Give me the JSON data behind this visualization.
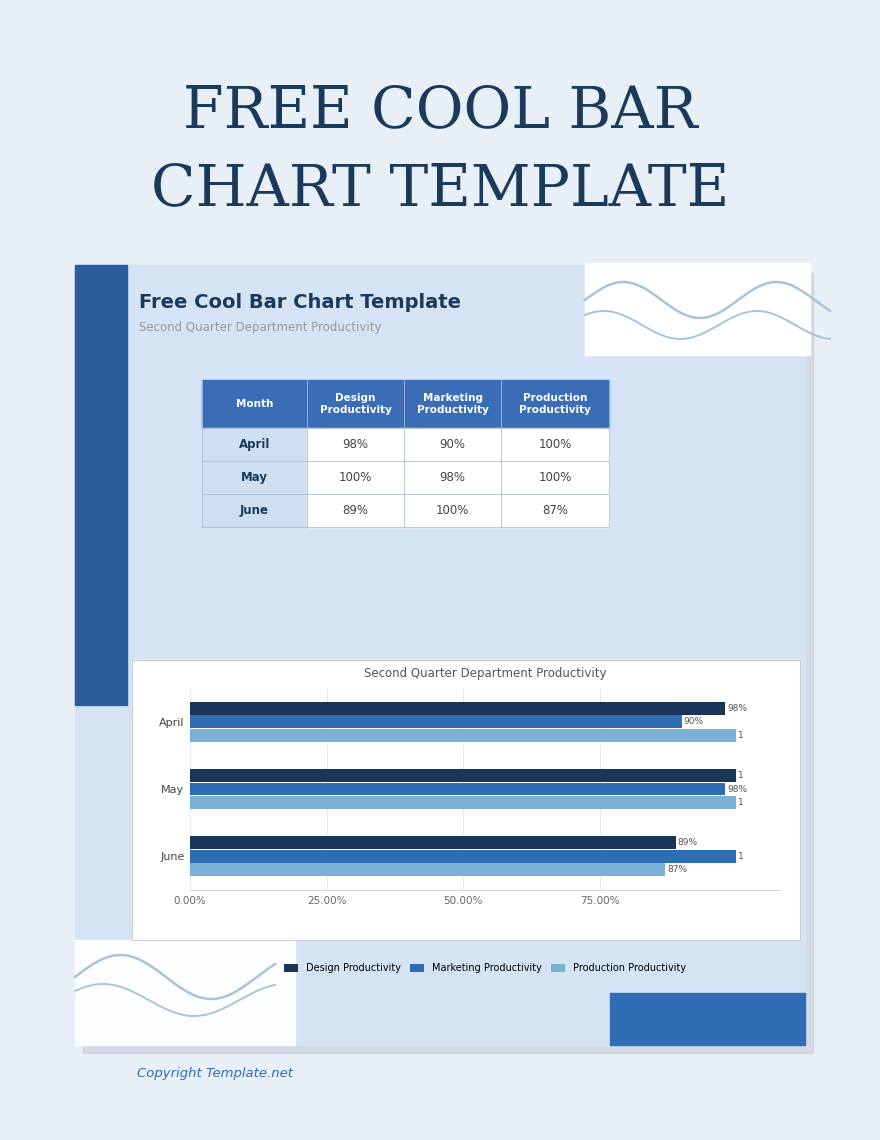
{
  "main_title": "FREE COOL BAR\nCHART TEMPLATE",
  "main_title_color": "#1a3a5c",
  "main_title_fontsize": 42,
  "card_title": "Free Cool Bar Chart Template",
  "card_subtitle": "Second Quarter Department Productivity",
  "card_title_color": "#1a3a5c",
  "card_subtitle_color": "#999999",
  "bg_color": "#e8eff7",
  "inner_card_bg": "#d4e4f4",
  "sidebar_color": "#2b5c9e",
  "table_header_bg": "#3a6db5",
  "table_header_text": "#ffffff",
  "table_row_month_bg": "#cddff0",
  "table_months": [
    "April",
    "May",
    "June"
  ],
  "table_headers": [
    "Month",
    "Design\nProductivity",
    "Marketing\nProductivity",
    "Production\nProductivity"
  ],
  "table_data": {
    "April": [
      98,
      90,
      100
    ],
    "May": [
      100,
      98,
      100
    ],
    "June": [
      89,
      100,
      87
    ]
  },
  "chart_title": "Second Quarter Department Productivity",
  "chart_categories": [
    "April",
    "May",
    "June"
  ],
  "chart_data": {
    "Design Productivity": [
      98,
      100,
      89
    ],
    "Marketing Productivity": [
      90,
      98,
      100
    ],
    "Production Productivity": [
      100,
      100,
      87
    ]
  },
  "bar_colors": [
    "#1a3558",
    "#2e6db4",
    "#7ab0d4"
  ],
  "chart_bg": "#ffffff",
  "x_ticks_labels": [
    "0.00%",
    "25.00%",
    "50.00%",
    "75.00%"
  ],
  "x_ticks_vals": [
    0,
    25,
    50,
    75
  ],
  "copyright_text": "Copyright Template.net",
  "copyright_color": "#2e6db4",
  "footer_bar_color": "#2e6db4",
  "wave_color": "#a8c4da",
  "shadow_color": "#b0b8c4"
}
